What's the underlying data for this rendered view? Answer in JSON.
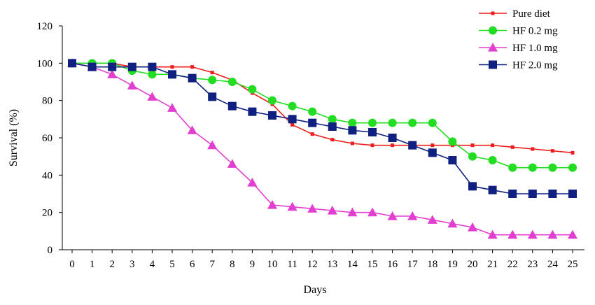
{
  "chart_data": {
    "type": "line",
    "title": "",
    "xlabel": "Days",
    "ylabel": "Survival (%)",
    "ylim": [
      0,
      120
    ],
    "yticks": [
      0,
      20,
      40,
      60,
      80,
      100,
      120
    ],
    "grid": false,
    "legend_position": "top-right",
    "x": [
      0,
      1,
      2,
      3,
      4,
      5,
      6,
      7,
      8,
      9,
      10,
      11,
      12,
      13,
      14,
      15,
      16,
      17,
      18,
      19,
      20,
      21,
      22,
      23,
      24,
      25
    ],
    "series": [
      {
        "name": "Pure diet",
        "color": "#ee1c1c",
        "marker": "small-square",
        "values": [
          100,
          100,
          100,
          98,
          98,
          98,
          98,
          95,
          91,
          84,
          78,
          67,
          62,
          59,
          57,
          56,
          56,
          56,
          56,
          56,
          56,
          56,
          55,
          54,
          53,
          52
        ]
      },
      {
        "name": "HF 0.2 mg",
        "color": "#22dd22",
        "marker": "circle",
        "values": [
          100,
          100,
          100,
          96,
          94,
          94,
          92,
          91,
          90,
          86,
          80,
          77,
          74,
          70,
          68,
          68,
          68,
          68,
          68,
          58,
          50,
          48,
          44,
          44,
          44,
          44
        ]
      },
      {
        "name": "HF 1.0 mg",
        "color": "#e23fd0",
        "marker": "triangle",
        "values": [
          100,
          98,
          94,
          88,
          82,
          76,
          64,
          56,
          46,
          36,
          24,
          23,
          22,
          21,
          20,
          20,
          18,
          18,
          16,
          14,
          12,
          8,
          8,
          8,
          8,
          8
        ]
      },
      {
        "name": "HF 2.0 mg",
        "color": "#102080",
        "marker": "square",
        "values": [
          100,
          98,
          98,
          98,
          98,
          94,
          92,
          82,
          77,
          74,
          72,
          70,
          68,
          66,
          64,
          63,
          60,
          56,
          52,
          48,
          34,
          32,
          30,
          30,
          30,
          30
        ]
      }
    ]
  }
}
